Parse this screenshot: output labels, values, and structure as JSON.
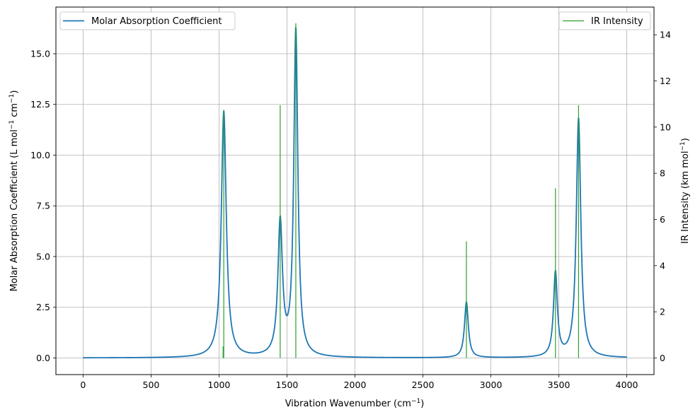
{
  "chart_data": {
    "type": "line",
    "x_axis": {
      "label": "Vibration Wavenumber (cm",
      "label_sup": "−1",
      "label_end": ")",
      "range": [
        -200,
        4200
      ],
      "ticks": [
        0,
        500,
        1000,
        1500,
        2000,
        2500,
        3000,
        3500,
        4000
      ]
    },
    "y_left": {
      "label": "Molar Absorption Coefficient (L mol",
      "label_sup1": "−1",
      "label_mid": " cm",
      "label_sup2": "−1",
      "label_end": ")",
      "range": [
        -0.82,
        17.3
      ],
      "ticks": [
        0.0,
        2.5,
        5.0,
        7.5,
        10.0,
        12.5,
        15.0
      ],
      "tick_labels": [
        "0.0",
        "2.5",
        "5.0",
        "7.5",
        "10.0",
        "12.5",
        "15.0"
      ]
    },
    "y_right": {
      "label": "IR Intensity (km mol",
      "label_sup": "−1",
      "label_end": ")",
      "range": [
        -0.72,
        15.2
      ],
      "ticks": [
        0,
        2,
        4,
        6,
        8,
        10,
        12,
        14
      ]
    },
    "grid": true,
    "series": [
      {
        "name": "Molar Absorption Coefficient",
        "axis": "left",
        "style": "line",
        "color": "#1f77b4",
        "legend_position": "top-left",
        "peaks": [
          {
            "center": 1035,
            "height": 12.15,
            "hwhm": 22
          },
          {
            "center": 1450,
            "height": 6.6,
            "hwhm": 20
          },
          {
            "center": 1565,
            "height": 16.1,
            "hwhm": 18
          },
          {
            "center": 2820,
            "height": 2.75,
            "hwhm": 17
          },
          {
            "center": 3475,
            "height": 4.15,
            "hwhm": 17
          },
          {
            "center": 3645,
            "height": 11.8,
            "hwhm": 20
          }
        ],
        "x_start": 0,
        "x_end": 4000
      },
      {
        "name": "IR Intensity",
        "axis": "right",
        "style": "stick",
        "color": "#2ca02c",
        "legend_position": "top-right",
        "x": [
          1030,
          1035,
          1450,
          1565,
          2820,
          3475,
          3645
        ],
        "y": [
          0.5,
          10.75,
          10.95,
          14.5,
          5.05,
          7.35,
          10.95
        ]
      }
    ]
  }
}
